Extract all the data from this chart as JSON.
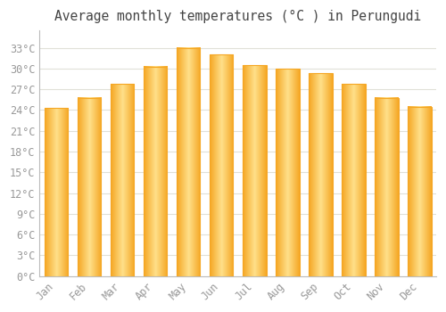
{
  "title": "Average monthly temperatures (°C ) in Perungudi",
  "months": [
    "Jan",
    "Feb",
    "Mar",
    "Apr",
    "May",
    "Jun",
    "Jul",
    "Aug",
    "Sep",
    "Oct",
    "Nov",
    "Dec"
  ],
  "values": [
    24.3,
    25.8,
    27.8,
    30.3,
    33.0,
    32.0,
    30.5,
    30.0,
    29.3,
    27.8,
    25.8,
    24.5
  ],
  "bar_color_center": "#FFE08A",
  "bar_color_edge": "#F5A623",
  "background_color": "#FFFFFF",
  "grid_color": "#E0E0D8",
  "yticks": [
    0,
    3,
    6,
    9,
    12,
    15,
    18,
    21,
    24,
    27,
    30,
    33
  ],
  "ytick_labels": [
    "0°C",
    "3°C",
    "6°C",
    "9°C",
    "12°C",
    "15°C",
    "18°C",
    "21°C",
    "24°C",
    "27°C",
    "30°C",
    "33°C"
  ],
  "ylim": [
    0,
    35.5
  ],
  "title_fontsize": 10.5,
  "tick_fontsize": 8.5,
  "font_color": "#999999",
  "title_color": "#444444",
  "spine_color": "#BBBBBB"
}
